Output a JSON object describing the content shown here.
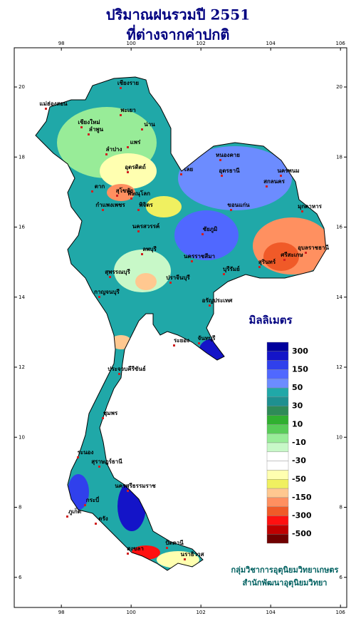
{
  "title": [
    "ปริมาณฝนรวมปี 2551",
    "ที่ต่างจากค่าปกติ"
  ],
  "map": {
    "xlim": [
      96.65,
      106.18
    ],
    "ylim": [
      5.14,
      21.12
    ],
    "xticks": [
      98,
      100,
      102,
      104,
      106
    ],
    "yticks": [
      20,
      18,
      16,
      14,
      12,
      10,
      8,
      6
    ],
    "places": [
      "เชียงราย",
      "แม่ฮ่องสอน",
      "พะเยา",
      "เชียงใหม่",
      "ลำพูน",
      "น่าน",
      "แพร่",
      "ลำปาง",
      "อุตรดิตถ์",
      "ตาก",
      "สุโขทัย",
      "พิษณุโลก",
      "กำแพงเพชร",
      "พิจิตร",
      "เลย",
      "หนองคาย",
      "อุดรธานี",
      "สกลนคร",
      "นครพนม",
      "มุกดาหาร",
      "ขอนแก่น",
      "ชัยภูมิ",
      "นครราชสีมา",
      "บุรีรัมย์",
      "สุรินทร์",
      "ศรีสะเกษ",
      "อุบลราชธานี",
      "นครสวรรค์",
      "ลพบุรี",
      "สุพรรณบุรี",
      "กาญจนบุรี",
      "ปราจีนบุรี",
      "อรัญประเทศ",
      "ระยอง",
      "จันทบุรี",
      "ประจวบคีรีขันธ์",
      "ชุมพร",
      "ระนอง",
      "สุราษฎร์ธานี",
      "นครศรีธรรมราช",
      "กระบี่",
      "ภูเก็ต",
      "ตรัง",
      "สงขลา",
      "ปัตตานี",
      "นราธิวาส"
    ]
  },
  "legend": {
    "title": "มิลลิเมตร",
    "colors": [
      "#00009c",
      "#1414c8",
      "#3040ec",
      "#5068ff",
      "#6c8cff",
      "#20a8a8",
      "#1e9090",
      "#2e8b57",
      "#30b030",
      "#58cc58",
      "#98ec98",
      "#c8f8c8",
      "#ffffff",
      "#ffffff",
      "#ffffb0",
      "#f0f060",
      "#ffc890",
      "#ff9060",
      "#f05a28",
      "#ff1010",
      "#c00000",
      "#700000"
    ],
    "labels": [
      300,
      150,
      50,
      30,
      10,
      -10,
      -30,
      -50,
      -150,
      -300,
      -500
    ]
  },
  "credit": [
    "กลุ่มวิชาการอุตุนิยมวิทยาเกษตร",
    "สำนักพัฒนาอุตุนิยมวิทยา"
  ]
}
